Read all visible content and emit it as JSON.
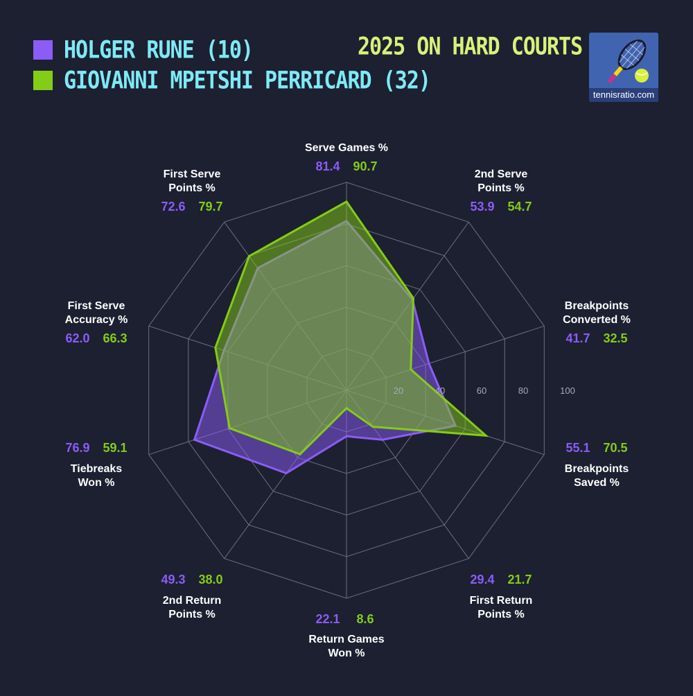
{
  "title": "2025 ON HARD COURTS",
  "logo": {
    "text": "tennisratio.com"
  },
  "colors": {
    "background": "#1c2031",
    "grid": "#6b7080",
    "series1": "#8b5cf6",
    "series2": "#84cc16",
    "legend_text": "#7fe9f6",
    "title_text": "#d9f07a"
  },
  "chart_data": {
    "type": "radar",
    "title": "2025 ON HARD COURTS",
    "rlim": [
      0,
      100
    ],
    "r_ticks": [
      "20",
      "40",
      "60",
      "80",
      "100"
    ],
    "categories": [
      "Serve Games %",
      "2nd Serve Points %",
      "Breakpoints Converted %",
      "Breakpoints Saved %",
      "First Return Points %",
      "Return Games Won %",
      "2nd Return Points %",
      "Tiebreaks Won %",
      "First Serve Accuracy %",
      "First Serve Points %"
    ],
    "series": [
      {
        "name": "HOLGER RUNE (10)",
        "color": "#8b5cf6",
        "values": [
          81.4,
          53.9,
          41.7,
          55.1,
          29.4,
          22.1,
          49.3,
          76.9,
          62.0,
          72.6
        ],
        "labels": [
          "81.4",
          "53.9",
          "41.7",
          "55.1",
          "29.4",
          "22.1",
          "49.3",
          "76.9",
          "62.0",
          "72.6"
        ]
      },
      {
        "name": "GIOVANNI MPETSHI PERRICARD (32)",
        "color": "#84cc16",
        "values": [
          90.7,
          54.7,
          32.5,
          70.5,
          21.7,
          8.6,
          38.0,
          59.1,
          66.3,
          79.7
        ],
        "labels": [
          "90.7",
          "54.7",
          "32.5",
          "70.5",
          "21.7",
          "8.6",
          "38.0",
          "59.1",
          "66.3",
          "79.7"
        ]
      }
    ],
    "grid": true,
    "legend": "top-left"
  }
}
